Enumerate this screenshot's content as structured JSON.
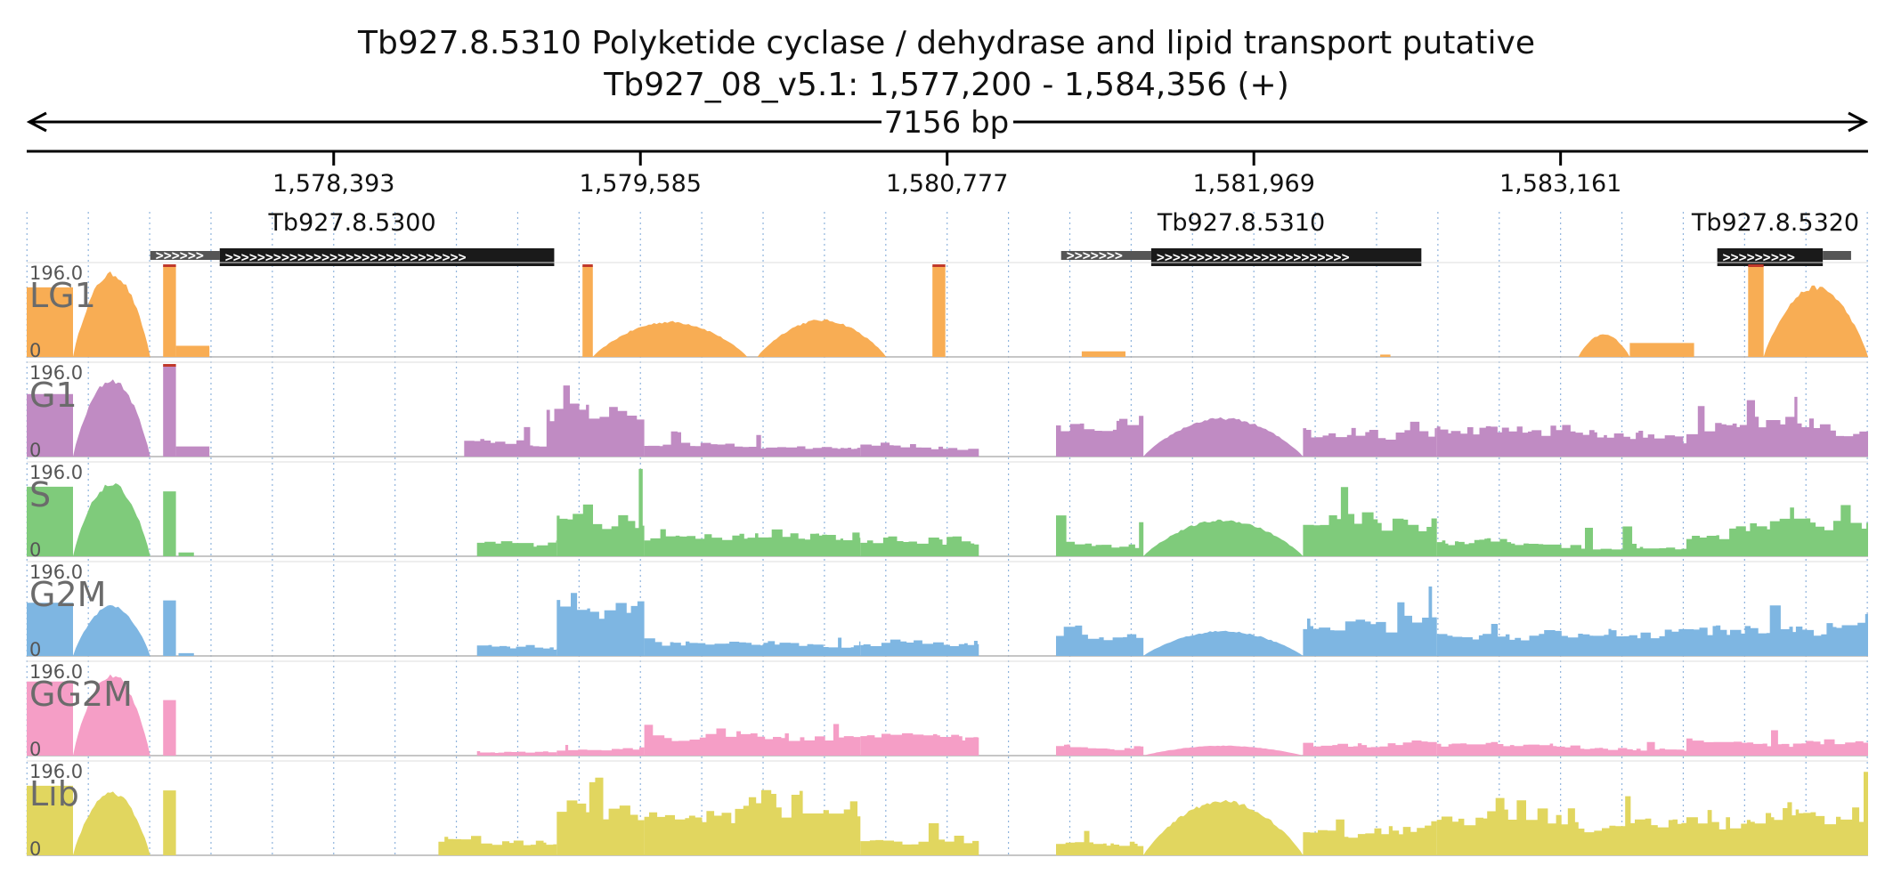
{
  "header": {
    "title": "Tb927.8.5310  Polyketide cyclase / dehydrase and lipid transport  putative",
    "locus": "Tb927_08_v5.1: 1,577,200 - 1,584,356 (+)",
    "span_label": "7156 bp"
  },
  "chart_data": {
    "type": "area",
    "region": {
      "chrom": "Tb927_08_v5.1",
      "start": 1577200,
      "end": 1584356,
      "strand": "+"
    },
    "ruler": {
      "ticks": [
        1578393,
        1579585,
        1580777,
        1581969,
        1583161
      ],
      "tick_labels": [
        "1,578,393",
        "1,579,585",
        "1,580,777",
        "1,581,969",
        "1,583,161"
      ]
    },
    "genes": [
      {
        "name": "Tb927.8.5300",
        "utr5": [
          1577680,
          1577950
        ],
        "cds": [
          1577950,
          1579250
        ],
        "utr3": null
      },
      {
        "name": "Tb927.8.5310",
        "utr5": [
          1581220,
          1581570
        ],
        "cds": [
          1581570,
          1582620
        ],
        "utr3": null
      },
      {
        "name": "Tb927.8.5320",
        "utr5": null,
        "cds": [
          1583770,
          1584180
        ],
        "utr3": [
          1584180,
          1584290
        ]
      }
    ],
    "axis": {
      "ymin": 0,
      "ymax": 196.0,
      "ymin_label": "0",
      "ymax_label": "196.0"
    },
    "tracks": [
      {
        "name": "LG1",
        "color": "#f8ad54",
        "segments": [
          {
            "range": [
              1577200,
              1577380
            ],
            "shape": "block",
            "peak": 150
          },
          {
            "range": [
              1577380,
              1577680
            ],
            "shape": "hump",
            "peak": 185
          },
          {
            "range": [
              1577730,
              1577780
            ],
            "shape": "block",
            "peak": 196
          },
          {
            "range": [
              1577780,
              1577910
            ],
            "shape": "flat",
            "peak": 24
          },
          {
            "range": [
              1579360,
              1579400
            ],
            "shape": "block",
            "peak": 196
          },
          {
            "range": [
              1579400,
              1580000
            ],
            "shape": "hump",
            "peak": 78
          },
          {
            "range": [
              1580040,
              1580540
            ],
            "shape": "hump",
            "peak": 82
          },
          {
            "range": [
              1580720,
              1580770
            ],
            "shape": "block",
            "peak": 196
          },
          {
            "range": [
              1581300,
              1581470
            ],
            "shape": "flat",
            "peak": 12
          },
          {
            "range": [
              1582460,
              1582500
            ],
            "shape": "flat",
            "peak": 5
          },
          {
            "range": [
              1583230,
              1583430
            ],
            "shape": "hump",
            "peak": 50
          },
          {
            "range": [
              1583430,
              1583680
            ],
            "shape": "flat",
            "peak": 30
          },
          {
            "range": [
              1583890,
              1583950
            ],
            "shape": "block",
            "peak": 196
          },
          {
            "range": [
              1583950,
              1584356
            ],
            "shape": "hump",
            "peak": 155
          }
        ]
      },
      {
        "name": "G1",
        "color": "#c08bc3",
        "segments": [
          {
            "range": [
              1577200,
              1577380
            ],
            "shape": "block",
            "peak": 135
          },
          {
            "range": [
              1577380,
              1577680
            ],
            "shape": "hump",
            "peak": 170
          },
          {
            "range": [
              1577730,
              1577780
            ],
            "shape": "block",
            "peak": 196
          },
          {
            "range": [
              1577780,
              1577910
            ],
            "shape": "flat",
            "peak": 22
          },
          {
            "range": [
              1578900,
              1579260
            ],
            "shape": "ragged",
            "peak": 70
          },
          {
            "range": [
              1579220,
              1579600
            ],
            "shape": "ragged",
            "peak": 190
          },
          {
            "range": [
              1579600,
              1580440
            ],
            "shape": "ragged",
            "peak": 55
          },
          {
            "range": [
              1580440,
              1580900
            ],
            "shape": "ragged",
            "peak": 50
          },
          {
            "range": [
              1581200,
              1581540
            ],
            "shape": "ragged",
            "peak": 110
          },
          {
            "range": [
              1581540,
              1582160
            ],
            "shape": "hump",
            "peak": 85
          },
          {
            "range": [
              1582160,
              1582680
            ],
            "shape": "ragged",
            "peak": 95
          },
          {
            "range": [
              1582680,
              1583650
            ],
            "shape": "ragged",
            "peak": 85
          },
          {
            "range": [
              1583650,
              1584356
            ],
            "shape": "ragged",
            "peak": 130
          }
        ]
      },
      {
        "name": "S",
        "color": "#7fcb7b",
        "segments": [
          {
            "range": [
              1577200,
              1577380
            ],
            "shape": "block",
            "peak": 150
          },
          {
            "range": [
              1577380,
              1577680
            ],
            "shape": "hump",
            "peak": 160
          },
          {
            "range": [
              1577730,
              1577780
            ],
            "shape": "block",
            "peak": 140
          },
          {
            "range": [
              1577790,
              1577850
            ],
            "shape": "flat",
            "peak": 8
          },
          {
            "range": [
              1578950,
              1579260
            ],
            "shape": "ragged",
            "peak": 55
          },
          {
            "range": [
              1579260,
              1579600
            ],
            "shape": "ragged",
            "peak": 196
          },
          {
            "range": [
              1579600,
              1580440
            ],
            "shape": "ragged",
            "peak": 60
          },
          {
            "range": [
              1580440,
              1580900
            ],
            "shape": "ragged",
            "peak": 55
          },
          {
            "range": [
              1581200,
              1581540
            ],
            "shape": "ragged",
            "peak": 90
          },
          {
            "range": [
              1581540,
              1582160
            ],
            "shape": "hump",
            "peak": 80
          },
          {
            "range": [
              1582160,
              1582680
            ],
            "shape": "ragged",
            "peak": 150
          },
          {
            "range": [
              1582680,
              1583650
            ],
            "shape": "ragged",
            "peak": 80
          },
          {
            "range": [
              1583650,
              1584356
            ],
            "shape": "ragged",
            "peak": 125
          }
        ]
      },
      {
        "name": "G2M",
        "color": "#7eb6e2",
        "segments": [
          {
            "range": [
              1577200,
              1577380
            ],
            "shape": "block",
            "peak": 115
          },
          {
            "range": [
              1577380,
              1577680
            ],
            "shape": "hump",
            "peak": 110
          },
          {
            "range": [
              1577730,
              1577780
            ],
            "shape": "block",
            "peak": 120
          },
          {
            "range": [
              1577790,
              1577850
            ],
            "shape": "flat",
            "peak": 6
          },
          {
            "range": [
              1578950,
              1579260
            ],
            "shape": "ragged",
            "peak": 40
          },
          {
            "range": [
              1579260,
              1579600
            ],
            "shape": "ragged",
            "peak": 196
          },
          {
            "range": [
              1579600,
              1580440
            ],
            "shape": "ragged",
            "peak": 50
          },
          {
            "range": [
              1580440,
              1580900
            ],
            "shape": "ragged",
            "peak": 48
          },
          {
            "range": [
              1581200,
              1581540
            ],
            "shape": "ragged",
            "peak": 80
          },
          {
            "range": [
              1581540,
              1582160
            ],
            "shape": "hump",
            "peak": 55
          },
          {
            "range": [
              1582160,
              1582680
            ],
            "shape": "ragged",
            "peak": 150
          },
          {
            "range": [
              1582680,
              1583650
            ],
            "shape": "ragged",
            "peak": 70
          },
          {
            "range": [
              1583650,
              1584356
            ],
            "shape": "ragged",
            "peak": 130
          }
        ]
      },
      {
        "name": "GG2M",
        "color": "#f59ec6",
        "segments": [
          {
            "range": [
              1577200,
              1577380
            ],
            "shape": "block",
            "peak": 160
          },
          {
            "range": [
              1577380,
              1577680
            ],
            "shape": "hump",
            "peak": 180
          },
          {
            "range": [
              1577730,
              1577780
            ],
            "shape": "block",
            "peak": 120
          },
          {
            "range": [
              1578950,
              1579260
            ],
            "shape": "ragged",
            "peak": 12
          },
          {
            "range": [
              1579260,
              1579600
            ],
            "shape": "ragged",
            "peak": 25
          },
          {
            "range": [
              1579600,
              1580440
            ],
            "shape": "ragged",
            "peak": 70
          },
          {
            "range": [
              1580440,
              1580900
            ],
            "shape": "ragged",
            "peak": 60
          },
          {
            "range": [
              1581200,
              1581540
            ],
            "shape": "ragged",
            "peak": 35
          },
          {
            "range": [
              1581540,
              1582160
            ],
            "shape": "hump",
            "peak": 22
          },
          {
            "range": [
              1582160,
              1582680
            ],
            "shape": "ragged",
            "peak": 40
          },
          {
            "range": [
              1582680,
              1583650
            ],
            "shape": "ragged",
            "peak": 35
          },
          {
            "range": [
              1583650,
              1584356
            ],
            "shape": "ragged",
            "peak": 60
          }
        ]
      },
      {
        "name": "Lib",
        "color": "#e1d65f",
        "segments": [
          {
            "range": [
              1577200,
              1577380
            ],
            "shape": "block",
            "peak": 150
          },
          {
            "range": [
              1577380,
              1577680
            ],
            "shape": "hump",
            "peak": 140
          },
          {
            "range": [
              1577730,
              1577780
            ],
            "shape": "block",
            "peak": 140
          },
          {
            "range": [
              1578800,
              1579260
            ],
            "shape": "ragged",
            "peak": 55
          },
          {
            "range": [
              1579260,
              1579600
            ],
            "shape": "ragged",
            "peak": 196
          },
          {
            "range": [
              1579600,
              1580440
            ],
            "shape": "ragged",
            "peak": 150
          },
          {
            "range": [
              1580440,
              1580900
            ],
            "shape": "ragged",
            "peak": 70
          },
          {
            "range": [
              1581200,
              1581540
            ],
            "shape": "ragged",
            "peak": 60
          },
          {
            "range": [
              1581540,
              1582160
            ],
            "shape": "hump",
            "peak": 120
          },
          {
            "range": [
              1582160,
              1582680
            ],
            "shape": "ragged",
            "peak": 90
          },
          {
            "range": [
              1582680,
              1583650
            ],
            "shape": "ragged",
            "peak": 130
          },
          {
            "range": [
              1583650,
              1584356
            ],
            "shape": "ragged",
            "peak": 196
          }
        ]
      }
    ]
  }
}
